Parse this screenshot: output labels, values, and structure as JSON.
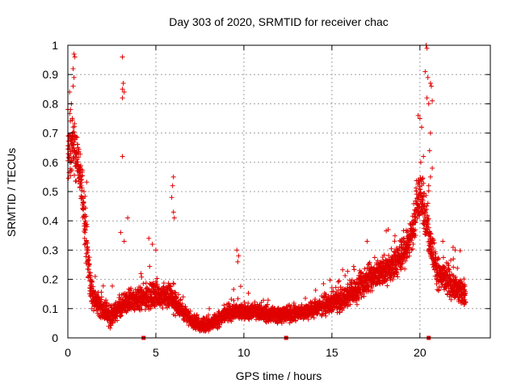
{
  "chart_data": {
    "type": "scatter",
    "title": "Day 303 of 2020, SRMTID for receiver chac",
    "xlabel": "GPS time / hours",
    "ylabel": "SRMTID / TECUs",
    "xlim": [
      0,
      24
    ],
    "ylim": [
      0,
      1
    ],
    "x_ticks": [
      0,
      5,
      10,
      15,
      20
    ],
    "x_tick_labels": [
      "0",
      "5",
      "10",
      "15",
      "20"
    ],
    "y_ticks": [
      0,
      0.1,
      0.2,
      0.3,
      0.4,
      0.5,
      0.6,
      0.7,
      0.8,
      0.9,
      1
    ],
    "y_tick_labels": [
      "0",
      "0.1",
      "0.2",
      "0.3",
      "0.4",
      "0.5",
      "0.6",
      "0.7",
      "0.8",
      "0.9",
      "1"
    ],
    "grid": true,
    "marker": "+",
    "color": "#e00000",
    "series": [
      {
        "name": "SRMTID",
        "profile": [
          [
            0.0,
            0.62
          ],
          [
            0.3,
            0.66
          ],
          [
            0.6,
            0.6
          ],
          [
            0.9,
            0.45
          ],
          [
            1.1,
            0.3
          ],
          [
            1.3,
            0.17
          ],
          [
            1.6,
            0.12
          ],
          [
            2.0,
            0.1
          ],
          [
            2.4,
            0.07
          ],
          [
            3.0,
            0.1
          ],
          [
            3.5,
            0.13
          ],
          [
            4.0,
            0.13
          ],
          [
            5.0,
            0.15
          ],
          [
            5.8,
            0.14
          ],
          [
            6.4,
            0.1
          ],
          [
            7.0,
            0.06
          ],
          [
            7.6,
            0.04
          ],
          [
            8.5,
            0.06
          ],
          [
            9.0,
            0.08
          ],
          [
            9.5,
            0.09
          ],
          [
            10.5,
            0.09
          ],
          [
            11.5,
            0.08
          ],
          [
            12.5,
            0.08
          ],
          [
            13.5,
            0.09
          ],
          [
            14.5,
            0.11
          ],
          [
            15.5,
            0.13
          ],
          [
            16.5,
            0.17
          ],
          [
            17.5,
            0.22
          ],
          [
            18.3,
            0.24
          ],
          [
            19.0,
            0.28
          ],
          [
            19.6,
            0.37
          ],
          [
            20.0,
            0.5
          ],
          [
            20.3,
            0.42
          ],
          [
            20.6,
            0.33
          ],
          [
            21.0,
            0.22
          ],
          [
            22.0,
            0.17
          ],
          [
            22.6,
            0.15
          ]
        ],
        "spread": [
          [
            0.0,
            0.14
          ],
          [
            1.0,
            0.12
          ],
          [
            1.5,
            0.05
          ],
          [
            4.0,
            0.06
          ],
          [
            6.0,
            0.06
          ],
          [
            7.0,
            0.03
          ],
          [
            9.0,
            0.04
          ],
          [
            14.0,
            0.04
          ],
          [
            16.0,
            0.06
          ],
          [
            18.0,
            0.07
          ],
          [
            19.5,
            0.08
          ],
          [
            20.0,
            0.12
          ],
          [
            21.0,
            0.08
          ],
          [
            22.6,
            0.06
          ]
        ],
        "outliers": [
          [
            0.1,
            0.84
          ],
          [
            0.2,
            0.8
          ],
          [
            0.35,
            0.97
          ],
          [
            0.4,
            0.96
          ],
          [
            0.3,
            0.92
          ],
          [
            0.35,
            0.89
          ],
          [
            0.3,
            0.86
          ],
          [
            0.15,
            0.78
          ],
          [
            0.25,
            0.75
          ],
          [
            3.1,
            0.96
          ],
          [
            3.15,
            0.87
          ],
          [
            3.1,
            0.85
          ],
          [
            3.2,
            0.84
          ],
          [
            3.1,
            0.82
          ],
          [
            3.1,
            0.62
          ],
          [
            3.4,
            0.41
          ],
          [
            3.0,
            0.36
          ],
          [
            3.2,
            0.33
          ],
          [
            6.0,
            0.55
          ],
          [
            5.95,
            0.52
          ],
          [
            5.9,
            0.48
          ],
          [
            6.0,
            0.43
          ],
          [
            6.05,
            0.41
          ],
          [
            4.6,
            0.34
          ],
          [
            4.8,
            0.32
          ],
          [
            5.0,
            0.3
          ],
          [
            9.6,
            0.3
          ],
          [
            9.7,
            0.28
          ],
          [
            9.65,
            0.26
          ],
          [
            19.9,
            0.76
          ],
          [
            20.0,
            0.75
          ],
          [
            20.1,
            0.72
          ],
          [
            20.2,
            0.62
          ],
          [
            20.05,
            0.6
          ],
          [
            20.35,
            1.0
          ],
          [
            20.4,
            0.99
          ],
          [
            20.3,
            0.91
          ],
          [
            20.45,
            0.89
          ],
          [
            20.4,
            0.82
          ],
          [
            20.5,
            0.8
          ],
          [
            20.6,
            0.87
          ],
          [
            20.65,
            0.86
          ],
          [
            20.7,
            0.81
          ],
          [
            20.6,
            0.7
          ],
          [
            20.55,
            0.64
          ],
          [
            20.7,
            0.58
          ],
          [
            20.6,
            0.55
          ],
          [
            20.5,
            0.52
          ],
          [
            21.3,
            0.33
          ],
          [
            22.0,
            0.3
          ],
          [
            21.9,
            0.27
          ],
          [
            18.2,
            0.37
          ],
          [
            17.0,
            0.33
          ]
        ]
      }
    ],
    "gap_markers_x": [
      4.3,
      12.4,
      20.5
    ]
  }
}
